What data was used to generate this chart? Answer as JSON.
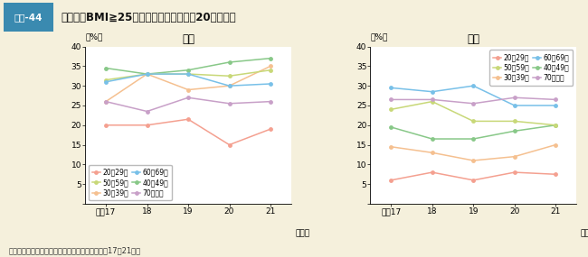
{
  "title_label": "図表-44",
  "title_text": "肥満者（BMI≧25）の割合の年次推移（20歳以上）",
  "subtitle_male": "男性",
  "subtitle_female": "女性",
  "xlabel": "（年）",
  "ylabel": "（%）",
  "x_labels": [
    "平成17",
    "18",
    "19",
    "20",
    "21"
  ],
  "x_values": [
    0,
    1,
    2,
    3,
    4
  ],
  "ylim": [
    0,
    40
  ],
  "yticks": [
    0,
    5,
    10,
    15,
    20,
    25,
    30,
    35,
    40
  ],
  "footer": "資料：厚生労働省「国民健康・栄養調査」（平成17～21年）",
  "background_color": "#f5f0dc",
  "title_bar_color": "#c8dde8",
  "title_box_color": "#3a8ab0",
  "male_data": {
    "20~29歳": [
      20,
      20,
      21.5,
      15,
      19
    ],
    "30~39歳": [
      26,
      33,
      29,
      30,
      35
    ],
    "40~49歳": [
      34.5,
      33,
      34,
      36,
      37
    ],
    "50~59歳": [
      31.5,
      33,
      33,
      32.5,
      34
    ],
    "60~69歳": [
      31,
      33,
      33,
      30,
      30.5
    ],
    "70歳以上": [
      26,
      23.5,
      27,
      25.5,
      26
    ]
  },
  "female_data": {
    "20~29歳": [
      6,
      8,
      6,
      8,
      7.5
    ],
    "30~39歳": [
      14.5,
      13,
      11,
      12,
      15
    ],
    "40~49歳": [
      19.5,
      16.5,
      16.5,
      18.5,
      20
    ],
    "50~59歳": [
      24,
      26,
      21,
      21,
      20
    ],
    "60~69歳": [
      29.5,
      28.5,
      30,
      25,
      25
    ],
    "70歳以上": [
      26.5,
      26.5,
      25.5,
      27,
      26.5
    ]
  },
  "age_colors": {
    "20~29歳": "#f4a090",
    "30~39歳": "#f5c090",
    "40~49歳": "#88c888",
    "50~59歳": "#c8d878",
    "60~69歳": "#78c0e8",
    "70歳以上": "#c8a0c8"
  },
  "legend_order": [
    "20~29歳",
    "50~59歳",
    "30~39歳",
    "60~69歳",
    "40~49歳",
    "70歳以上"
  ],
  "legend_display": {
    "20~29歳": "20～29歳",
    "30~39歳": "30～39歳",
    "40~49歳": "40～49歳",
    "50~59歳": "50～59歳",
    "60~69歳": "60～69歳",
    "70歳以上": "70歳以上"
  }
}
